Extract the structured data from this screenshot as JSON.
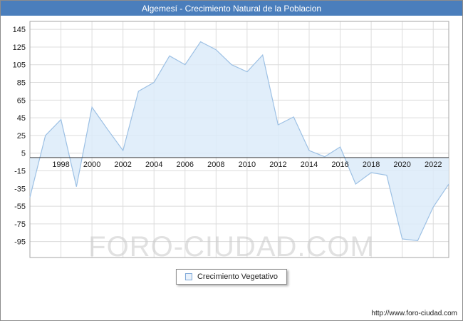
{
  "header": {
    "title": "Algemesí - Crecimiento Natural de la Poblacion",
    "bg_color": "#4a7ebc"
  },
  "legend": {
    "label": "Crecimiento Vegetativo"
  },
  "watermark": "FORO-CIUDAD.COM",
  "footer": {
    "url": "http://www.foro-ciudad.com"
  },
  "chart_data": {
    "type": "area",
    "title": "Algemesí - Crecimiento Natural de la Poblacion",
    "xlabel": "",
    "ylabel": "",
    "x": [
      1996,
      1997,
      1998,
      1999,
      2000,
      2001,
      2002,
      2003,
      2004,
      2005,
      2006,
      2007,
      2008,
      2009,
      2010,
      2011,
      2012,
      2013,
      2014,
      2015,
      2016,
      2017,
      2018,
      2019,
      2020,
      2021,
      2022,
      2023
    ],
    "series": [
      {
        "name": "Crecimiento Vegetativo",
        "values": [
          -45,
          25,
          43,
          -33,
          57,
          32,
          8,
          75,
          85,
          115,
          105,
          131,
          122,
          105,
          97,
          116,
          37,
          46,
          8,
          1,
          12,
          -30,
          -17,
          -20,
          -92,
          -94,
          -56,
          -30
        ]
      }
    ],
    "yticks": [
      145,
      125,
      105,
      85,
      65,
      45,
      25,
      5,
      -15,
      -35,
      -55,
      -75,
      -95
    ],
    "xtick_labels": [
      "1998",
      "2000",
      "2002",
      "2004",
      "2006",
      "2008",
      "2010",
      "2012",
      "2014",
      "2016",
      "2018",
      "2020",
      "2022"
    ],
    "ylim": [
      -113,
      154
    ],
    "grid": "on",
    "legend_position": "bottom-center",
    "colors": {
      "fill": "#dcebf9",
      "stroke": "#9cc0e4",
      "grid": "#dcdcdc",
      "plot_border": "#a6a6a6",
      "zero_line": "#3f3f3f",
      "tick_text": "#1a1a1a"
    }
  }
}
